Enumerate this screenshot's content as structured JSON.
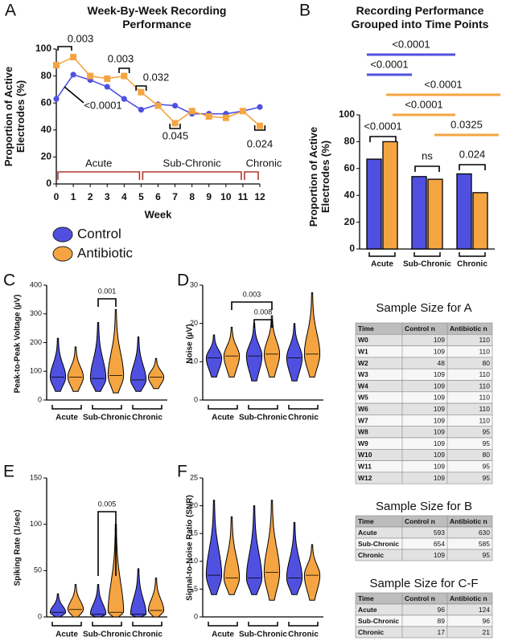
{
  "chart_data": [
    {
      "type": "line",
      "panel": "A",
      "title": "Week-By-Week Recording Performance",
      "x_label": "Week",
      "y_label": "Proportion of Active Electrodes (%)",
      "x": [
        0,
        1,
        2,
        3,
        4,
        5,
        6,
        7,
        8,
        9,
        10,
        11,
        12
      ],
      "xlim": [
        0,
        12
      ],
      "xticks": [
        0,
        1,
        2,
        3,
        4,
        5,
        6,
        7,
        8,
        9,
        10,
        11,
        12
      ],
      "ylim": [
        0,
        100
      ],
      "yticks": [
        0,
        20,
        40,
        60,
        80,
        100
      ],
      "series": [
        {
          "name": "Control",
          "color": "#5050e0",
          "values": [
            63,
            81,
            77,
            72,
            63,
            55,
            59,
            58,
            52,
            52,
            52,
            54,
            57
          ]
        },
        {
          "name": "Antibiotic",
          "color": "#f5a442",
          "values": [
            88,
            94,
            80,
            78,
            80,
            68,
            58,
            45,
            54,
            50,
            49,
            54,
            43
          ]
        }
      ],
      "annotations": [
        "0.003",
        "<0.0001",
        "0.003",
        "0.032",
        "0.045",
        "0.024"
      ],
      "phases": [
        "Acute",
        "Sub-Chronic",
        "Chronic"
      ]
    },
    {
      "type": "bar",
      "panel": "B",
      "title": "Recording Performance Grouped into Time Points",
      "y_label": "Proportion of Active Electrodes (%)",
      "categories": [
        "Acute",
        "Sub-Chronic",
        "Chronic"
      ],
      "ylim": [
        0,
        100
      ],
      "yticks": [
        0,
        20,
        40,
        60,
        80,
        100
      ],
      "series": [
        {
          "color": "#5050e0",
          "values": [
            67,
            54,
            56
          ]
        },
        {
          "color": "#f5a442",
          "values": [
            80,
            52,
            42
          ]
        }
      ],
      "annotations": [
        "<0.0001",
        "<0.0001",
        "<0.0001",
        "<0.0001",
        "0.0325",
        "<0.0001",
        "ns",
        "0.024"
      ]
    },
    {
      "type": "violin",
      "panel": "C",
      "y_label": "Peak-to-Peak Voltage (µV)",
      "categories": [
        "Acute",
        "Sub-Chronic",
        "Chronic"
      ],
      "ylim": [
        0,
        400
      ],
      "yticks": [
        0,
        100,
        200,
        300,
        400
      ],
      "series": [
        {
          "color": "#5050e0",
          "values": [
            80,
            75,
            70
          ],
          "max": [
            215,
            270,
            220
          ],
          "min": [
            30,
            30,
            30
          ]
        },
        {
          "color": "#f5a442",
          "values": [
            80,
            85,
            80
          ],
          "max": [
            185,
            315,
            145
          ],
          "min": [
            30,
            25,
            40
          ]
        }
      ],
      "annotations": [
        "0.001"
      ]
    },
    {
      "type": "violin",
      "panel": "D",
      "y_label": "Noise (µV)",
      "categories": [
        "Acute",
        "Sub-Chronic",
        "Chronic"
      ],
      "ylim": [
        0,
        30
      ],
      "yticks": [
        0,
        10,
        20,
        30
      ],
      "series": [
        {
          "color": "#5050e0",
          "values": [
            11,
            11.5,
            11
          ],
          "max": [
            17,
            20,
            20
          ],
          "min": [
            6,
            5,
            5
          ]
        },
        {
          "color": "#f5a442",
          "values": [
            11.5,
            12,
            12
          ],
          "max": [
            19,
            22,
            28
          ],
          "min": [
            6,
            6,
            6
          ]
        }
      ],
      "annotations": [
        "0.003",
        "0.008"
      ]
    },
    {
      "type": "violin",
      "panel": "E",
      "y_label": "Spiking Rate (1/sec)",
      "categories": [
        "Acute",
        "Sub-Chronic",
        "Chronic"
      ],
      "ylim": [
        0,
        150
      ],
      "yticks": [
        0,
        50,
        100,
        150
      ],
      "series": [
        {
          "color": "#5050e0",
          "values": [
            5,
            3,
            3
          ],
          "max": [
            25,
            35,
            52
          ],
          "min": [
            0,
            0,
            0
          ]
        },
        {
          "color": "#f5a442",
          "values": [
            8,
            5,
            7
          ],
          "max": [
            35,
            100,
            42
          ],
          "min": [
            0,
            0,
            0
          ]
        }
      ],
      "annotations": [
        "0.005"
      ]
    },
    {
      "type": "violin",
      "panel": "F",
      "y_label": "Signal-to-Noise Ratio (SNR)",
      "categories": [
        "Acute",
        "Sub-Chronic",
        "Chronic"
      ],
      "ylim": [
        0,
        25
      ],
      "yticks": [
        0,
        5,
        10,
        15,
        20,
        25
      ],
      "series": [
        {
          "color": "#5050e0",
          "values": [
            7.5,
            7,
            7
          ],
          "max": [
            21,
            20,
            17
          ],
          "min": [
            4,
            4,
            4
          ]
        },
        {
          "color": "#f5a442",
          "values": [
            7,
            8,
            7.5
          ],
          "max": [
            18,
            21,
            13
          ],
          "min": [
            4,
            3,
            3
          ]
        }
      ],
      "annotations": []
    }
  ],
  "tables": [
    {
      "title": "Sample Size for A",
      "columns": [
        "Time",
        "Control n",
        "Antibiotic n"
      ],
      "rows": [
        [
          "W0",
          109,
          110
        ],
        [
          "W1",
          109,
          110
        ],
        [
          "W2",
          48,
          80
        ],
        [
          "W3",
          109,
          110
        ],
        [
          "W4",
          109,
          110
        ],
        [
          "W5",
          109,
          110
        ],
        [
          "W6",
          109,
          110
        ],
        [
          "W7",
          109,
          110
        ],
        [
          "W8",
          109,
          95
        ],
        [
          "W9",
          109,
          95
        ],
        [
          "W10",
          109,
          80
        ],
        [
          "W11",
          109,
          95
        ],
        [
          "W12",
          109,
          95
        ]
      ]
    },
    {
      "title": "Sample Size for B",
      "columns": [
        "Time",
        "Control n",
        "Antibiotic n"
      ],
      "rows": [
        [
          "Acute",
          593,
          630
        ],
        [
          "Sub-Chronic",
          654,
          585
        ],
        [
          "Chronic",
          109,
          95
        ]
      ]
    },
    {
      "title": "Sample Size for C-F",
      "columns": [
        "Time",
        "Control n",
        "Antibiotic n"
      ],
      "rows": [
        [
          "Acute",
          96,
          124
        ],
        [
          "Sub-Chronic",
          89,
          96
        ],
        [
          "Chronic",
          17,
          21
        ]
      ]
    }
  ]
}
